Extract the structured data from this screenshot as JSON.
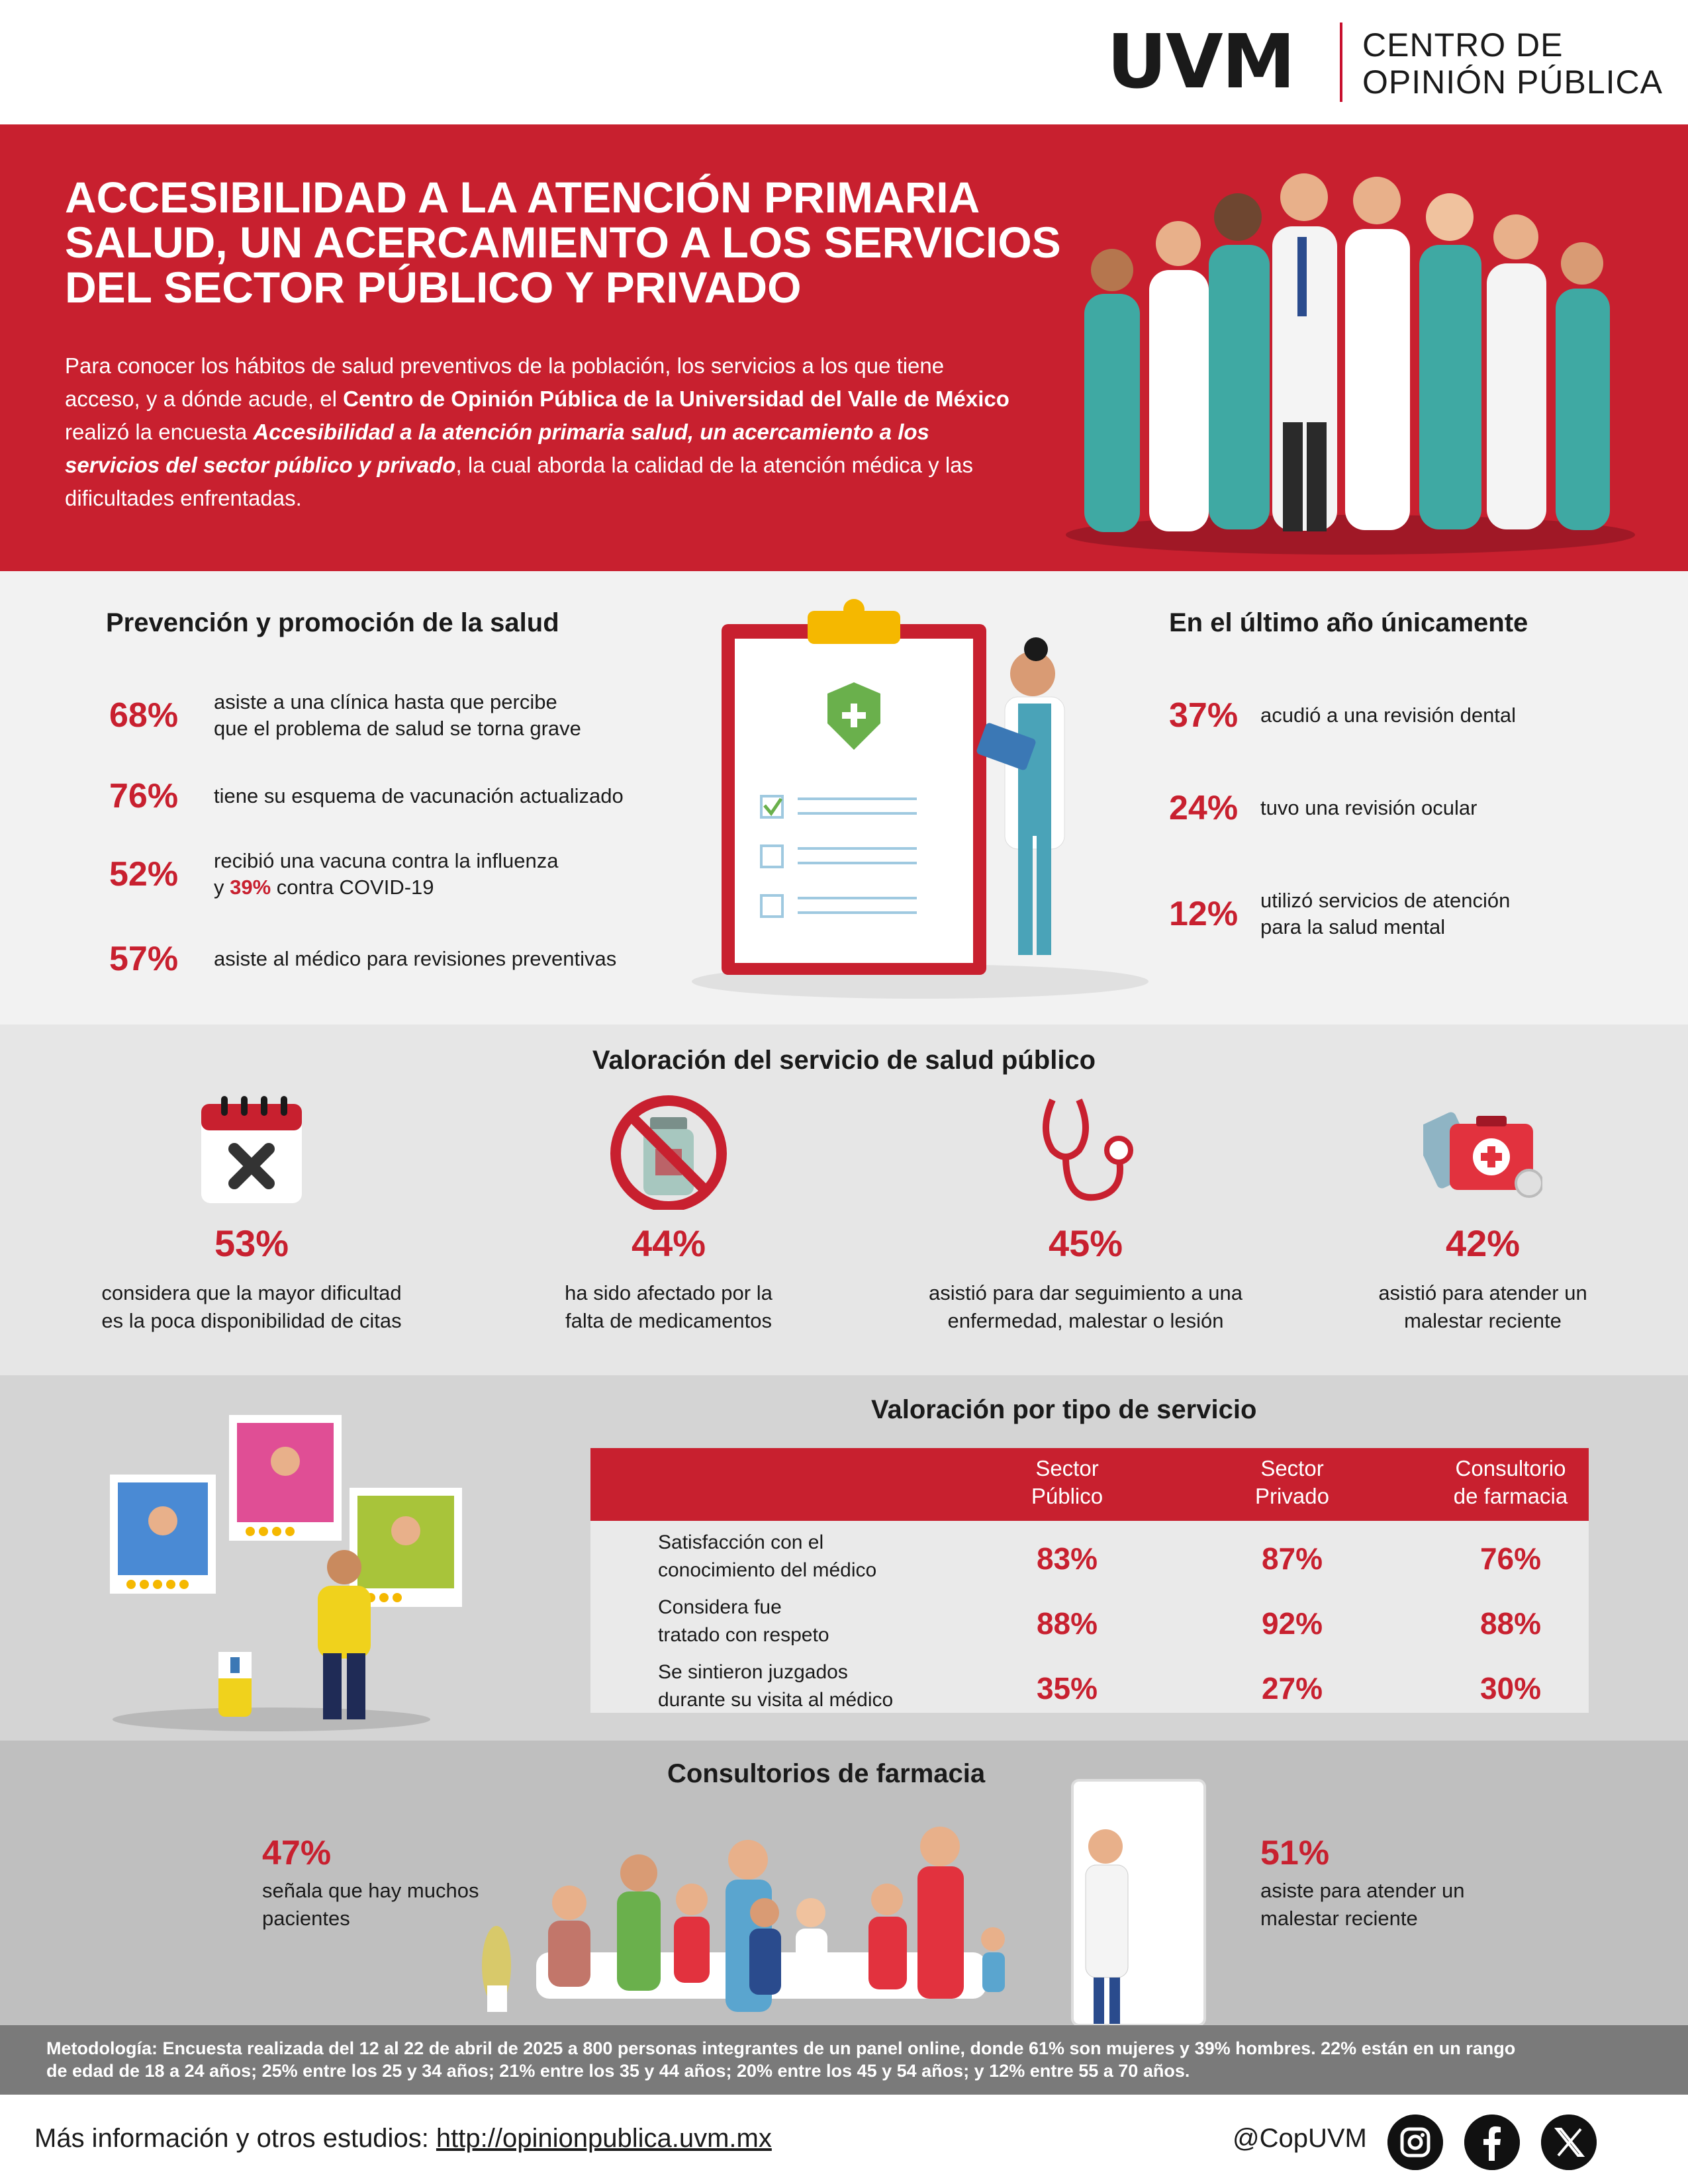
{
  "header": {
    "logo": "UVM",
    "org_line1": "CENTRO DE",
    "org_line2": "OPINIÓN PÚBLICA"
  },
  "hero": {
    "title_line1": "ACCESIBILIDAD A LA ATENCIÓN PRIMARIA",
    "title_line2": "SALUD, UN ACERCAMIENTO A LOS SERVICIOS",
    "title_line3": "DEL SECTOR PÚBLICO Y PRIVADO",
    "body_part1": "Para conocer los hábitos de salud preventivos de la población, los servicios a los que tiene acceso, y a dónde acude, el ",
    "body_bold": "Centro de Opinión Pública de la Universidad del Valle de México",
    "body_part2": " realizó la encuesta ",
    "body_italic": "Accesibilidad a la atención primaria salud, un acercamiento a los servicios del sector público y privado",
    "body_part3": ", la cual aborda la calidad de la atención médica y las dificultades enfrentadas."
  },
  "prevention": {
    "title": "Prevención y promoción de la salud",
    "items": [
      {
        "pct": "68%",
        "line1": "asiste a una clínica hasta que percibe",
        "line2": "que el problema de salud se torna grave"
      },
      {
        "pct": "76%",
        "line1": "tiene su esquema de vacunación actualizado",
        "line2": ""
      },
      {
        "pct": "52%",
        "line1": "recibió una vacuna contra la influenza",
        "line2_pre": "y ",
        "line2_pct": "39%",
        "line2_post": " contra COVID-19"
      },
      {
        "pct": "57%",
        "line1": "asiste al médico para revisiones preventivas",
        "line2": ""
      }
    ]
  },
  "last_year": {
    "title": "En el último año únicamente",
    "items": [
      {
        "pct": "37%",
        "line1": "acudió a una revisión dental",
        "line2": ""
      },
      {
        "pct": "24%",
        "line1": "tuvo una revisión ocular",
        "line2": ""
      },
      {
        "pct": "12%",
        "line1": "utilizó servicios de atención",
        "line2": "para la salud mental"
      }
    ]
  },
  "public_service": {
    "title": "Valoración del servicio de salud público",
    "items": [
      {
        "icon": "calendar-x-icon",
        "pct": "53%",
        "line1": "considera que la mayor dificultad",
        "line2": "es la poca disponibilidad de citas"
      },
      {
        "icon": "no-medicine-icon",
        "pct": "44%",
        "line1": "ha sido afectado por la",
        "line2": "falta de medicamentos"
      },
      {
        "icon": "stethoscope-icon",
        "pct": "45%",
        "line1": "asistió para dar seguimiento a una",
        "line2": "enfermedad, malestar o lesión"
      },
      {
        "icon": "first-aid-kit-icon",
        "pct": "42%",
        "line1": "asistió para atender un",
        "line2": "malestar reciente"
      }
    ]
  },
  "service_type": {
    "title": "Valoración por tipo de servicio",
    "headers": [
      {
        "line1": "Sector",
        "line2": "Público"
      },
      {
        "line1": "Sector",
        "line2": "Privado"
      },
      {
        "line1": "Consultorio",
        "line2": "de farmacia"
      }
    ],
    "rows": [
      {
        "line1": "Satisfacción con el",
        "line2": "conocimiento del médico",
        "values": [
          "83%",
          "87%",
          "76%"
        ]
      },
      {
        "line1": "Considera fue",
        "line2": "tratado con respeto",
        "values": [
          "88%",
          "92%",
          "88%"
        ]
      },
      {
        "line1": "Se sintieron juzgados",
        "line2": "durante su visita al médico",
        "values": [
          "35%",
          "27%",
          "30%"
        ]
      }
    ]
  },
  "pharmacy": {
    "title": "Consultorios de farmacia",
    "left": {
      "pct": "47%",
      "line1": "señala que hay muchos",
      "line2": "pacientes"
    },
    "right": {
      "pct": "51%",
      "line1": "asiste para atender un",
      "line2": "malestar reciente"
    }
  },
  "methodology": {
    "line1": "Metodología: Encuesta realizada del 12 al 22 de abril de 2025 a 800 personas integrantes de un panel online, donde 61% son mujeres y 39% hombres. 22% están en un rango",
    "line2": "de edad de 18 a 24 años; 25% entre los 25 y 34 años; 21% entre los 35 y 44 años; 20% entre los 45 y 54 años; y 12% entre 55 a 70 años."
  },
  "footer": {
    "info_label": "Más información y otros estudios: ",
    "url": "http://opinionpublica.uvm.mx",
    "handle": "@CopUVM",
    "social": [
      "instagram-icon",
      "facebook-icon",
      "x-icon"
    ]
  },
  "colors": {
    "accent": "#c8202f",
    "dark": "#1a1a1a"
  }
}
